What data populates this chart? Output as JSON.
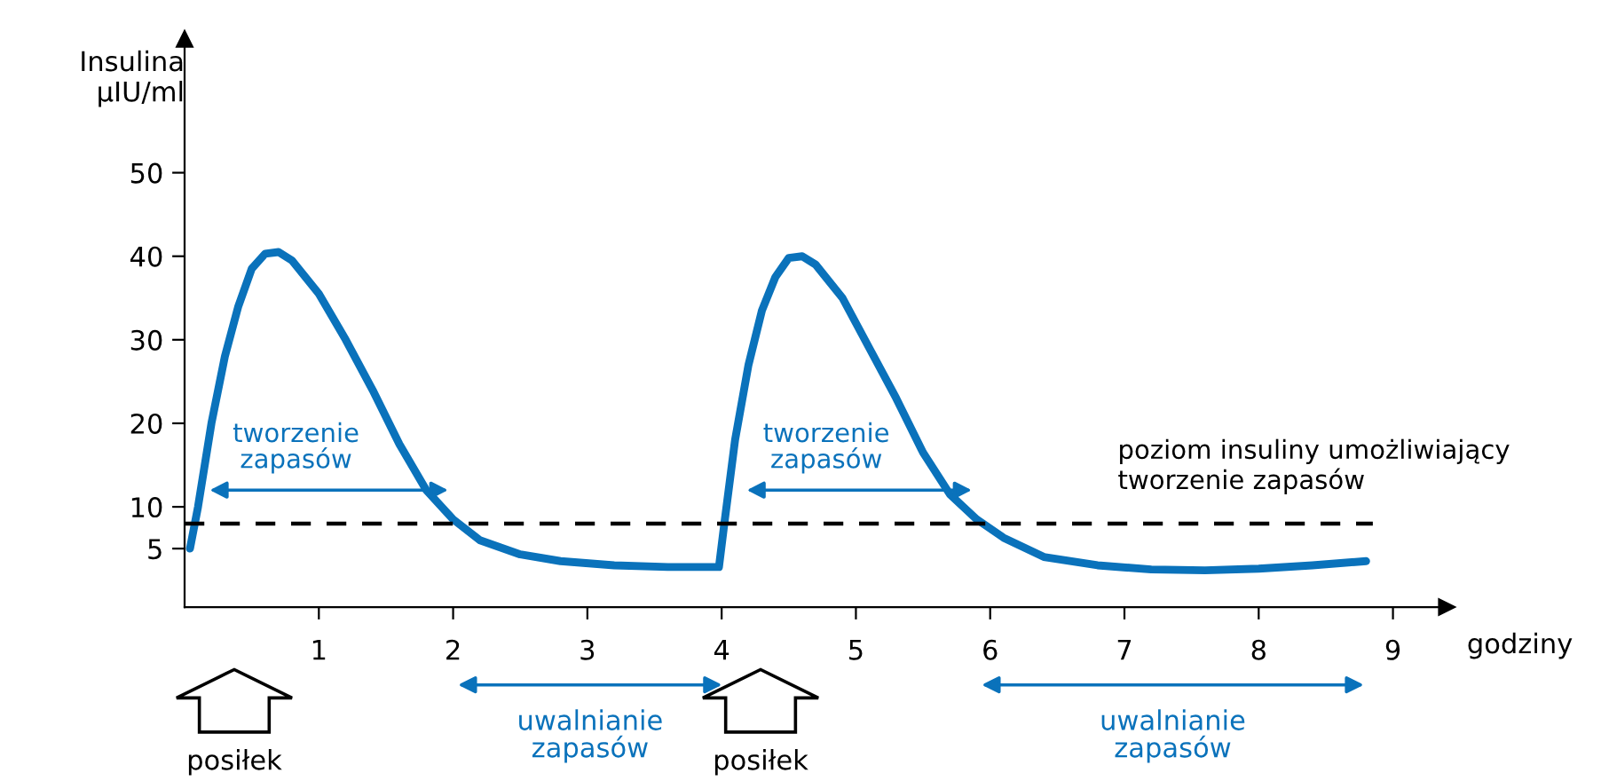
{
  "chart_data": {
    "type": "line",
    "xlabel": "godziny",
    "ylabel": "Insulina\nμIU/ml",
    "x": [
      0.04,
      0.1,
      0.2,
      0.3,
      0.4,
      0.5,
      0.6,
      0.7,
      0.8,
      1.0,
      1.2,
      1.4,
      1.6,
      1.8,
      2.0,
      2.2,
      2.5,
      2.8,
      3.2,
      3.6,
      3.98,
      4.02,
      4.1,
      4.2,
      4.3,
      4.4,
      4.5,
      4.6,
      4.7,
      4.9,
      5.1,
      5.3,
      5.5,
      5.7,
      5.9,
      6.1,
      6.4,
      6.8,
      7.2,
      7.6,
      8.0,
      8.4,
      8.8
    ],
    "series": [
      {
        "color": "#0a72bb",
        "values": [
          5,
          10,
          20,
          28,
          34,
          38.5,
          40.3,
          40.5,
          39.5,
          35.5,
          30,
          24,
          17.5,
          12,
          8.5,
          6,
          4.3,
          3.5,
          3,
          2.8,
          2.8,
          8,
          18,
          27,
          33.5,
          37.5,
          39.8,
          40,
          39,
          35,
          29,
          23,
          16.5,
          11.5,
          8.5,
          6.3,
          4,
          3,
          2.5,
          2.4,
          2.6,
          3,
          3.5
        ]
      }
    ],
    "xlim": [
      0,
      9.4
    ],
    "ylim": [
      -2,
      66
    ],
    "xticks": [
      1,
      2,
      3,
      4,
      5,
      6,
      7,
      8,
      9
    ],
    "yticks": [
      5,
      10,
      20,
      30,
      40,
      50
    ],
    "ref_lines": [
      {
        "axis": "y",
        "value": 8,
        "label": "poziom insuliny umożliwiający\ntworzenie zapasów",
        "color": "#000000",
        "line_style": "dashed"
      }
    ],
    "annotations": [
      "tworzenie\nzapasów",
      "tworzenie\nzapasów",
      "uwalnianie\nzapasów",
      "uwalnianie\nzapasów",
      "posiłek",
      "posiłek"
    ],
    "grid": false,
    "marker": "none",
    "line_style": "solid"
  }
}
